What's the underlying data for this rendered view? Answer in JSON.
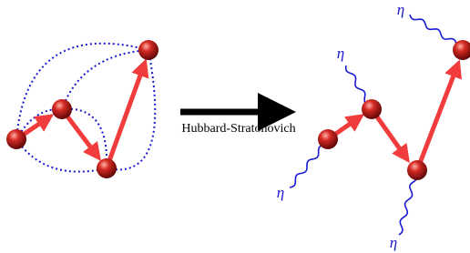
{
  "arrow_label": "Hubbard-Stratonovich",
  "noise_labels": [
    "η",
    "η",
    "η",
    "η"
  ]
}
